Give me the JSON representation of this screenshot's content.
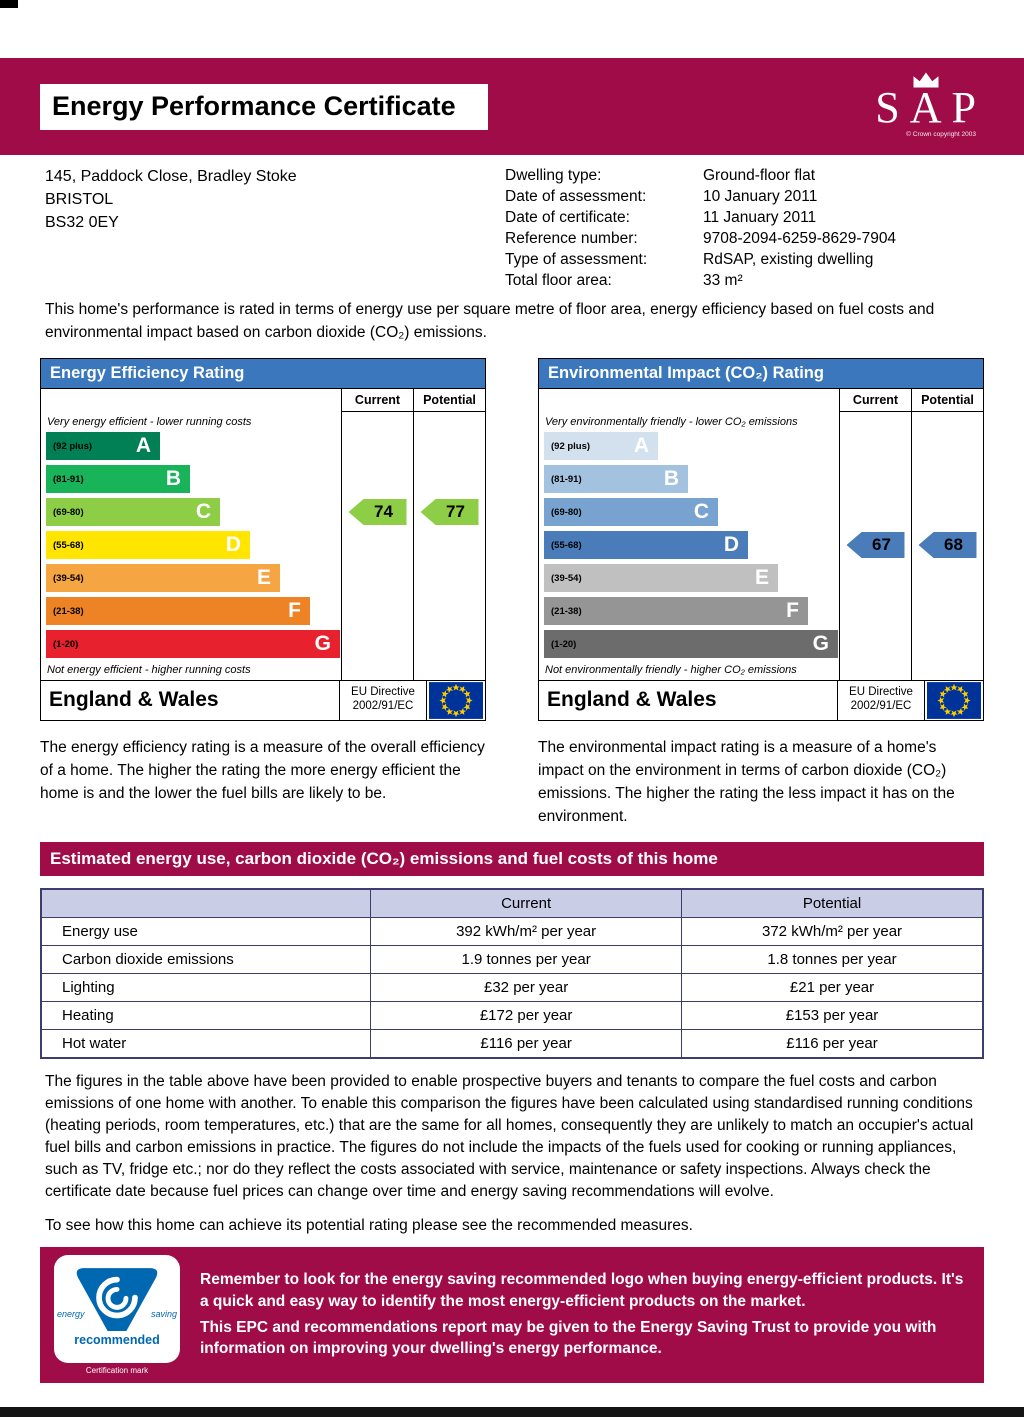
{
  "colors": {
    "maroon": "#a00c48",
    "chart-blue": "#3a77bc",
    "table-border": "#3d3d6b",
    "table-header-bg": "#c9cde6",
    "flag-blue": "#003399",
    "flag-star": "#ffcc00",
    "est-blue": "#0067b1"
  },
  "header": {
    "title": "Energy Performance Certificate",
    "sap": {
      "text": "SAP",
      "copyright": "© Crown copyright 2003"
    }
  },
  "property": {
    "address_lines": [
      "145, Paddock Close, Bradley Stoke",
      "BRISTOL",
      "BS32 0EY"
    ],
    "details": [
      {
        "label": "Dwelling type:",
        "value": "Ground-floor flat"
      },
      {
        "label": "Date of assessment:",
        "value": "10 January 2011"
      },
      {
        "label": "Date of certificate:",
        "value": "11 January 2011"
      },
      {
        "label": "Reference number:",
        "value": "9708-2094-6259-8629-7904"
      },
      {
        "label": "Type of assessment:",
        "value": "RdSAP, existing dwelling"
      },
      {
        "label": "Total floor area:",
        "value": "33 m²"
      }
    ]
  },
  "intro": "This home's performance is rated in terms of energy use per square metre of floor area, energy efficiency based on fuel costs and environmental impact based on carbon dioxide (CO₂) emissions.",
  "chart_data": [
    {
      "type": "bar",
      "title": "Energy Efficiency Rating",
      "columns": {
        "current": "Current",
        "potential": "Potential"
      },
      "top_caption": "Very energy efficient - lower running costs",
      "bottom_caption": "Not energy efficient - higher running costs",
      "bands": [
        {
          "label": "A",
          "range": "(92 plus)",
          "color": "#008054"
        },
        {
          "label": "B",
          "range": "(81-91)",
          "color": "#19b459"
        },
        {
          "label": "C",
          "range": "(69-80)",
          "color": "#8dce46"
        },
        {
          "label": "D",
          "range": "(55-68)",
          "color": "#ffe500"
        },
        {
          "label": "E",
          "range": "(39-54)",
          "color": "#f6a543"
        },
        {
          "label": "F",
          "range": "(21-38)",
          "color": "#ee8325"
        },
        {
          "label": "G",
          "range": "(1-20)",
          "color": "#e8212e"
        }
      ],
      "current": {
        "value": 74,
        "band": "C",
        "color": "#8dce46"
      },
      "potential": {
        "value": 77,
        "band": "C",
        "color": "#8dce46"
      },
      "footer": {
        "region": "England & Wales",
        "directive_line1": "EU Directive",
        "directive_line2": "2002/91/EC"
      }
    },
    {
      "type": "bar",
      "title": "Environmental Impact (CO₂) Rating",
      "columns": {
        "current": "Current",
        "potential": "Potential"
      },
      "top_caption": "Very environmentally friendly - lower CO₂ emissions",
      "bottom_caption": "Not environmentally friendly - higher CO₂ emissions",
      "bands": [
        {
          "label": "A",
          "range": "(92 plus)",
          "color": "#d3e0ee"
        },
        {
          "label": "B",
          "range": "(81-91)",
          "color": "#a3c2e0"
        },
        {
          "label": "C",
          "range": "(69-80)",
          "color": "#78a3d1"
        },
        {
          "label": "D",
          "range": "(55-68)",
          "color": "#4a7cba"
        },
        {
          "label": "E",
          "range": "(39-54)",
          "color": "#c0c0c0"
        },
        {
          "label": "F",
          "range": "(21-38)",
          "color": "#959595"
        },
        {
          "label": "G",
          "range": "(1-20)",
          "color": "#6c6c6c"
        }
      ],
      "current": {
        "value": 67,
        "band": "D",
        "color": "#4a7cba"
      },
      "potential": {
        "value": 68,
        "band": "D",
        "color": "#4a7cba"
      },
      "footer": {
        "region": "England & Wales",
        "directive_line1": "EU Directive",
        "directive_line2": "2002/91/EC"
      }
    }
  ],
  "explanations": {
    "energy": "The energy efficiency rating is a measure of the overall efficiency of a home. The higher the rating the more energy efficient the home is and the lower the fuel bills are likely to be.",
    "environment": "The environmental impact rating is a measure of a home's impact on the environment in terms of carbon dioxide (CO₂) emissions. The higher the rating the less impact it has on the environment."
  },
  "costs_section": {
    "title": "Estimated energy use, carbon dioxide (CO₂) emissions and fuel costs of this home",
    "table": {
      "columns": [
        "",
        "Current",
        "Potential"
      ],
      "rows": [
        {
          "label": "Energy use",
          "current": "392 kWh/m² per year",
          "potential": "372 kWh/m² per year"
        },
        {
          "label": "Carbon dioxide emissions",
          "current": "1.9 tonnes per year",
          "potential": "1.8 tonnes per year"
        },
        {
          "label": "Lighting",
          "current": "£32 per year",
          "potential": "£21 per year"
        },
        {
          "label": "Heating",
          "current": "£172 per year",
          "potential": "£153 per year"
        },
        {
          "label": "Hot water",
          "current": "£116 per year",
          "potential": "£116 per year"
        }
      ]
    },
    "disclaimer": "The figures in the table above have been provided to enable prospective buyers and tenants to compare the fuel costs and carbon emissions of one home with another. To enable this comparison the figures have been calculated using standardised running conditions (heating periods, room temperatures, etc.) that are the same for all homes, consequently they are unlikely to match an occupier's actual fuel bills and carbon emissions in practice. The figures do not include the impacts of the fuels used for cooking or running appliances, such as TV, fridge etc.; nor do they reflect the costs associated with service, maintenance or safety inspections. Always check the certificate date because fuel prices can change over time and energy saving recommendations will evolve.",
    "see_measures": "To see how this home can achieve its potential rating please see the recommended measures."
  },
  "footer_box": {
    "logo": {
      "left_text": "energy",
      "right_text": "saving",
      "banner": "recommended",
      "mark_text": "Certification mark"
    },
    "paragraphs": [
      "Remember to look for the energy saving recommended logo when buying energy-efficient products. It's a quick and easy way to identify the most energy-efficient products on the market.",
      "This EPC and recommendations report may be given to the Energy Saving Trust to provide you with information on improving your dwelling's energy performance."
    ]
  }
}
